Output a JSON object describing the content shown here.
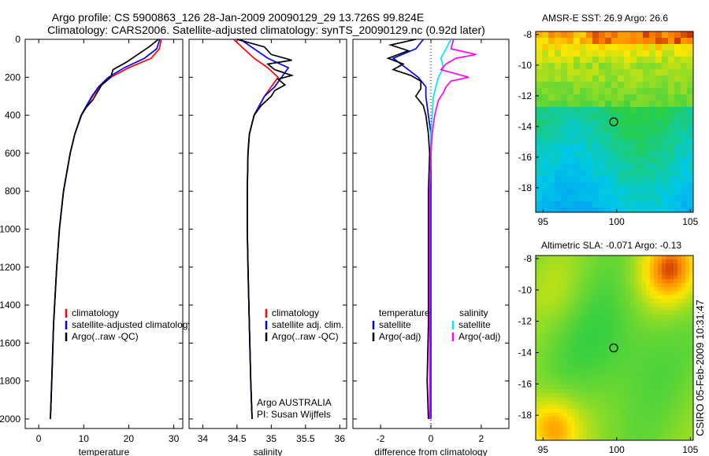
{
  "title_line1": "Argo profile: CS 5900863_126 28-Jan-2009 20090129_29 13.726S 99.824E",
  "title_line2": "Climatology: CARS2006. Satellite-adjusted climatology: synTS_20090129.nc (0.92d later)",
  "side_label": "CSIRO 05-Feb-2009 10:31:47",
  "colors": {
    "climatology": "#ff0000",
    "satellite": "#0000ff",
    "argo": "#000000",
    "sal_satellite": "#00e5ff",
    "sal_argo": "#ff00ff"
  },
  "chart_data": [
    {
      "type": "line",
      "name": "temperature",
      "xlabel": "temperature",
      "xlim": [
        -3,
        32
      ],
      "ylim": [
        2050,
        0
      ],
      "xticks": [
        0,
        10,
        20,
        30
      ],
      "yticks": [
        0,
        200,
        400,
        600,
        800,
        1000,
        1200,
        1400,
        1600,
        1800,
        2000
      ],
      "legend": [
        "climatology",
        "satellite-adjusted climatology",
        "Argo(..raw -QC)"
      ],
      "series": [
        {
          "name": "climatology",
          "color": "climatology",
          "depth": [
            0,
            50,
            100,
            150,
            200,
            250,
            300,
            400,
            500,
            600,
            800,
            1000,
            1200,
            1500,
            1800,
            2000
          ],
          "values": [
            27.2,
            26.8,
            25,
            20,
            16,
            13.5,
            12,
            9.5,
            8,
            7,
            5.5,
            4.6,
            4,
            3.3,
            2.9,
            2.6
          ]
        },
        {
          "name": "satellite",
          "color": "satellite",
          "depth": [
            0,
            50,
            100,
            150,
            200,
            250,
            300,
            400,
            500,
            600,
            800,
            1000,
            1200,
            1500,
            1800,
            2000
          ],
          "values": [
            26.9,
            26.2,
            23.5,
            19,
            15.5,
            13.3,
            11.8,
            9.4,
            8,
            7,
            5.5,
            4.6,
            4,
            3.3,
            2.9,
            2.6
          ]
        },
        {
          "name": "argo",
          "color": "argo",
          "depth": [
            0,
            40,
            80,
            120,
            160,
            200,
            240,
            280,
            320,
            360,
            400,
            500,
            600,
            800,
            1000,
            1200,
            1500,
            1800,
            2000
          ],
          "values": [
            26.6,
            24.5,
            22,
            19.5,
            16.5,
            16,
            14,
            13,
            12,
            10.5,
            9.5,
            8,
            7,
            5.5,
            4.6,
            4,
            3.3,
            2.9,
            2.6
          ]
        }
      ]
    },
    {
      "type": "line",
      "name": "salinity",
      "xlabel": "salinity",
      "xlim": [
        33.8,
        36.1
      ],
      "ylim": [
        2050,
        0
      ],
      "xticks": [
        34,
        34.5,
        35,
        35.5,
        36
      ],
      "yticks": [
        0,
        200,
        400,
        600,
        800,
        1000,
        1200,
        1400,
        1600,
        1800,
        2000
      ],
      "legend": [
        "climatology",
        "satellite adj. clim.",
        "Argo(..raw -QC)"
      ],
      "annotation": [
        "Argo AUSTRALIA",
        "PI: Susan Wijffels"
      ],
      "series": [
        {
          "name": "climatology",
          "color": "climatology",
          "depth": [
            0,
            50,
            100,
            150,
            200,
            250,
            300,
            400,
            500,
            600,
            800,
            1000,
            1200,
            1500,
            1800,
            2000
          ],
          "values": [
            34.45,
            34.6,
            34.75,
            34.95,
            35.1,
            35.0,
            34.9,
            34.75,
            34.68,
            34.66,
            34.65,
            34.65,
            34.66,
            34.68,
            34.7,
            34.72
          ]
        },
        {
          "name": "satellite",
          "color": "satellite",
          "depth": [
            0,
            50,
            100,
            150,
            200,
            250,
            300,
            400,
            500,
            600,
            800,
            1000,
            1200,
            1500,
            1800,
            2000
          ],
          "values": [
            34.55,
            34.75,
            34.95,
            35.25,
            35.15,
            35.05,
            34.9,
            34.75,
            34.68,
            34.66,
            34.65,
            34.65,
            34.66,
            34.68,
            34.7,
            34.72
          ]
        },
        {
          "name": "argo",
          "color": "argo",
          "depth": [
            0,
            40,
            80,
            110,
            130,
            160,
            190,
            210,
            240,
            270,
            300,
            350,
            400,
            500,
            600,
            800,
            1000,
            1200,
            1500,
            1800,
            2000
          ],
          "values": [
            34.5,
            34.9,
            35.0,
            35.3,
            34.95,
            35.05,
            35.3,
            35.1,
            35.2,
            35.05,
            35.0,
            34.85,
            34.75,
            34.68,
            34.66,
            34.65,
            34.65,
            34.66,
            34.68,
            34.7,
            34.72
          ]
        }
      ]
    },
    {
      "type": "line",
      "name": "difference",
      "xlabel": "difference from climatology",
      "xlim": [
        -3.1,
        3.1
      ],
      "ylim": [
        2050,
        0
      ],
      "xticks": [
        -2,
        0,
        2
      ],
      "yticks": [
        0,
        200,
        400,
        600,
        800,
        1000,
        1200,
        1400,
        1600,
        1800,
        2000
      ],
      "legend_temperature": [
        "temperature",
        "satellite",
        "Argo(-adj)"
      ],
      "legend_salinity": [
        "salinity",
        "satellite",
        "Argo(-adj)"
      ],
      "series": [
        {
          "name": "temperature satellite",
          "color": "satellite",
          "depth": [
            0,
            50,
            100,
            150,
            200,
            250,
            300,
            400,
            500,
            600,
            800,
            1000,
            1500,
            2000
          ],
          "values": [
            -0.3,
            -0.6,
            -1.5,
            -1.0,
            -0.5,
            -0.2,
            -0.2,
            -0.1,
            0,
            0,
            0,
            0,
            0,
            0
          ]
        },
        {
          "name": "temperature argo",
          "color": "argo",
          "depth": [
            0,
            30,
            60,
            100,
            130,
            160,
            190,
            220,
            260,
            300,
            350,
            400,
            500,
            600,
            800,
            1000,
            1200,
            1500,
            1800,
            2000
          ],
          "values": [
            -0.6,
            -1.6,
            -0.9,
            -1.7,
            -1.1,
            -1.5,
            -0.8,
            -0.4,
            -0.4,
            -0.6,
            -0.3,
            -0.2,
            -0.1,
            -0.05,
            -0.1,
            -0.1,
            -0.1,
            -0.1,
            -0.15,
            -0.1
          ]
        },
        {
          "name": "salinity satellite",
          "color": "sal_satellite",
          "depth": [
            0,
            50,
            100,
            150,
            200,
            250,
            300,
            400,
            500,
            600,
            800,
            1000,
            1500,
            2000
          ],
          "values": [
            0.8,
            0.6,
            0.4,
            0.5,
            0.3,
            0.2,
            0.1,
            0.05,
            0,
            0,
            -0.05,
            -0.05,
            -0.05,
            -0.05
          ]
        },
        {
          "name": "salinity argo",
          "color": "sal_argo",
          "depth": [
            0,
            50,
            80,
            100,
            130,
            160,
            200,
            220,
            250,
            280,
            320,
            400,
            500,
            600,
            800,
            1000,
            1500,
            2000
          ],
          "values": [
            0.9,
            0.8,
            1.8,
            1.0,
            0.6,
            0.4,
            1.5,
            0.8,
            0.6,
            0.5,
            0.3,
            0.15,
            0.05,
            0,
            -0.05,
            -0.05,
            -0.05,
            -0.05
          ]
        }
      ]
    },
    {
      "type": "heatmap",
      "name": "sst",
      "title": "AMSR-E SST: 26.9 Argo: 26.6",
      "xlim": [
        94.5,
        105.2
      ],
      "ylim": [
        -19.6,
        -7.8
      ],
      "xticks": [
        95,
        100,
        105
      ],
      "yticks": [
        -8,
        -10,
        -12,
        -14,
        -16,
        -18
      ],
      "marker": {
        "lon": 99.8,
        "lat": -13.7
      }
    },
    {
      "type": "heatmap",
      "name": "sla",
      "title": "Altimetric SLA: -0.071 Argo: -0.13",
      "xlim": [
        94.5,
        105.2
      ],
      "ylim": [
        -19.6,
        -7.8
      ],
      "xticks": [
        95,
        100,
        105
      ],
      "yticks": [
        -8,
        -10,
        -12,
        -14,
        -16,
        -18
      ],
      "marker": {
        "lon": 99.8,
        "lat": -13.7
      }
    }
  ]
}
